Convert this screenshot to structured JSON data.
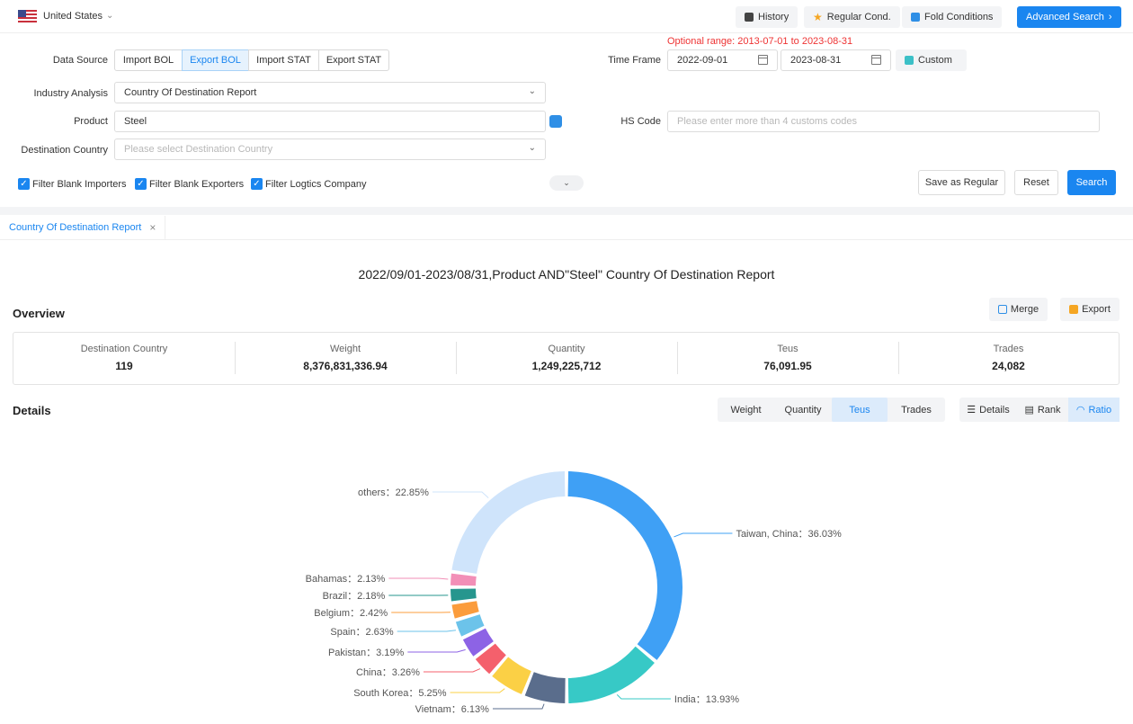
{
  "topbar": {
    "country": "United States",
    "history": "History",
    "regular_cond": "Regular Cond.",
    "fold_conditions": "Fold Conditions",
    "advanced_search": "Advanced Search",
    "accent": "#1a86f0"
  },
  "form": {
    "data_source_label": "Data Source",
    "data_sources": [
      "Import BOL",
      "Export BOL",
      "Import STAT",
      "Export STAT"
    ],
    "data_source_selected": "Export BOL",
    "optional_range": "Optional range:  2013-07-01 to 2023-08-31",
    "time_frame_label": "Time Frame",
    "date_from": "2022-09-01",
    "date_to": "2023-08-31",
    "custom": "Custom",
    "industry_label": "Industry Analysis",
    "industry_value": "Country Of Destination Report",
    "product_label": "Product",
    "product_value": "Steel",
    "hs_label": "HS Code",
    "hs_placeholder": "Please enter more than 4 customs codes",
    "dest_label": "Destination Country",
    "dest_placeholder": "Please select Destination Country",
    "filters": [
      "Filter Blank Importers",
      "Filter Blank Exporters",
      "Filter Logtics Company"
    ],
    "save_regular": "Save as Regular",
    "reset": "Reset",
    "search": "Search"
  },
  "tab": {
    "label": "Country Of Destination Report"
  },
  "report": {
    "title": "2022/09/01-2023/08/31,Product AND\"Steel\" Country Of Destination Report",
    "overview": "Overview",
    "merge": "Merge",
    "export": "Export",
    "stats": [
      {
        "label": "Destination Country",
        "value": "119"
      },
      {
        "label": "Weight",
        "value": "8,376,831,336.94"
      },
      {
        "label": "Quantity",
        "value": "1,249,225,712"
      },
      {
        "label": "Teus",
        "value": "76,091.95"
      },
      {
        "label": "Trades",
        "value": "24,082"
      }
    ],
    "details": "Details",
    "metrics": [
      "Weight",
      "Quantity",
      "Teus",
      "Trades"
    ],
    "metric_selected": "Teus",
    "views": [
      "Details",
      "Rank",
      "Ratio"
    ],
    "view_selected": "Ratio"
  },
  "chart_data": {
    "type": "pie",
    "variant": "donut",
    "slices": [
      {
        "name": "Taiwan, China",
        "value": 36.03,
        "label": "Taiwan, China：36.03%",
        "color": "#3fa0f5"
      },
      {
        "name": "India",
        "value": 13.93,
        "label": "India：13.93%",
        "color": "#37c9c6"
      },
      {
        "name": "Vietnam",
        "value": 6.13,
        "label": "Vietnam：6.13%",
        "color": "#5a6d8c"
      },
      {
        "name": "South Korea",
        "value": 5.25,
        "label": "South Korea：5.25%",
        "color": "#fbd045"
      },
      {
        "name": "China",
        "value": 3.26,
        "label": "China：3.26%",
        "color": "#f4606c"
      },
      {
        "name": "Pakistan",
        "value": 3.19,
        "label": "Pakistan：3.19%",
        "color": "#8d63e5"
      },
      {
        "name": "Spain",
        "value": 2.63,
        "label": "Spain：2.63%",
        "color": "#6cc3ea"
      },
      {
        "name": "Belgium",
        "value": 2.42,
        "label": "Belgium：2.42%",
        "color": "#fb9c3c"
      },
      {
        "name": "Brazil",
        "value": 2.18,
        "label": "Brazil：2.18%",
        "color": "#26968e"
      },
      {
        "name": "Bahamas",
        "value": 2.13,
        "label": "Bahamas：2.13%",
        "color": "#f28fb7"
      },
      {
        "name": "others",
        "value": 22.85,
        "label": "others：22.85%",
        "color": "#cfe4fb"
      }
    ]
  }
}
